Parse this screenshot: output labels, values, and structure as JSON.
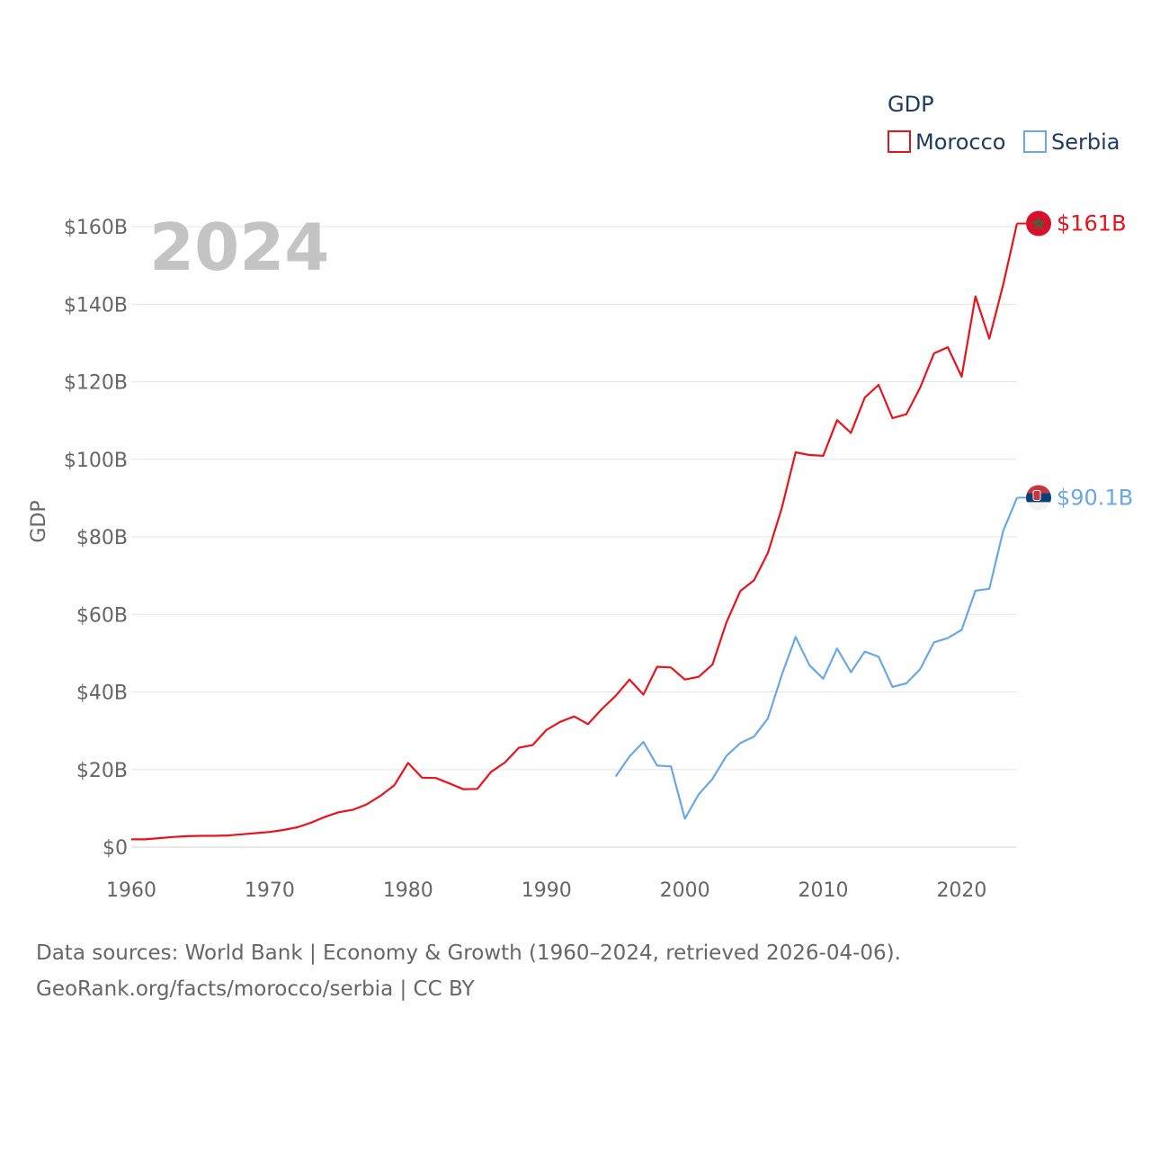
{
  "chart_data": {
    "type": "line",
    "watermark_year": "2024",
    "ylabel": "GDP",
    "xlabel": "",
    "xlim": [
      1960,
      2024
    ],
    "ylim": [
      0,
      160
    ],
    "x_ticks": [
      1960,
      1970,
      1980,
      1990,
      2000,
      2010,
      2020
    ],
    "x_tick_labels": [
      "1960",
      "1970",
      "1980",
      "1990",
      "2000",
      "2010",
      "2020"
    ],
    "y_ticks": [
      0,
      20,
      40,
      60,
      80,
      100,
      120,
      140,
      160
    ],
    "y_tick_labels": [
      "$0",
      "$20B",
      "$40B",
      "$60B",
      "$80B",
      "$100B",
      "$120B",
      "$140B",
      "$160B"
    ],
    "grid": true,
    "legend": {
      "title": "GDP",
      "position": "top-right"
    },
    "series": [
      {
        "name": "Morocco",
        "color": "#e8131b",
        "end_label": "$161B",
        "flag": "morocco-flag",
        "points": [
          [
            1960,
            2.0
          ],
          [
            1961,
            2.0
          ],
          [
            1962,
            2.3
          ],
          [
            1963,
            2.6
          ],
          [
            1964,
            2.8
          ],
          [
            1965,
            2.9
          ],
          [
            1966,
            2.9
          ],
          [
            1967,
            3.0
          ],
          [
            1968,
            3.3
          ],
          [
            1969,
            3.6
          ],
          [
            1970,
            3.9
          ],
          [
            1971,
            4.4
          ],
          [
            1972,
            5.1
          ],
          [
            1973,
            6.3
          ],
          [
            1974,
            7.8
          ],
          [
            1975,
            9.0
          ],
          [
            1976,
            9.6
          ],
          [
            1977,
            11.0
          ],
          [
            1978,
            13.2
          ],
          [
            1979,
            15.9
          ],
          [
            1980,
            21.7
          ],
          [
            1981,
            17.9
          ],
          [
            1982,
            17.8
          ],
          [
            1983,
            16.4
          ],
          [
            1984,
            14.9
          ],
          [
            1985,
            15.0
          ],
          [
            1986,
            19.4
          ],
          [
            1987,
            21.8
          ],
          [
            1988,
            25.6
          ],
          [
            1989,
            26.3
          ],
          [
            1990,
            30.2
          ],
          [
            1991,
            32.3
          ],
          [
            1992,
            33.7
          ],
          [
            1993,
            31.7
          ],
          [
            1994,
            35.6
          ],
          [
            1995,
            39.0
          ],
          [
            1996,
            43.2
          ],
          [
            1997,
            39.3
          ],
          [
            1998,
            46.5
          ],
          [
            1999,
            46.3
          ],
          [
            2000,
            43.2
          ],
          [
            2001,
            43.9
          ],
          [
            2002,
            47.1
          ],
          [
            2003,
            57.9
          ],
          [
            2004,
            66.0
          ],
          [
            2005,
            68.8
          ],
          [
            2006,
            75.9
          ],
          [
            2007,
            87.4
          ],
          [
            2008,
            101.8
          ],
          [
            2009,
            101.1
          ],
          [
            2010,
            100.9
          ],
          [
            2011,
            110.1
          ],
          [
            2012,
            106.8
          ],
          [
            2013,
            115.9
          ],
          [
            2014,
            119.2
          ],
          [
            2015,
            110.6
          ],
          [
            2016,
            111.6
          ],
          [
            2017,
            118.5
          ],
          [
            2018,
            127.3
          ],
          [
            2019,
            128.9
          ],
          [
            2020,
            121.3
          ],
          [
            2021,
            142.0
          ],
          [
            2022,
            131.1
          ],
          [
            2023,
            145.0
          ],
          [
            2024,
            160.8
          ]
        ]
      },
      {
        "name": "Serbia",
        "color": "#6aa8e2",
        "end_label": "$90.1B",
        "flag": "serbia-flag",
        "points": [
          [
            1995,
            18.2
          ],
          [
            1996,
            23.4
          ],
          [
            1997,
            27.1
          ],
          [
            1998,
            21.0
          ],
          [
            1999,
            20.8
          ],
          [
            2000,
            7.3
          ],
          [
            2001,
            13.6
          ],
          [
            2002,
            17.6
          ],
          [
            2003,
            23.5
          ],
          [
            2004,
            26.8
          ],
          [
            2005,
            28.5
          ],
          [
            2006,
            33.2
          ],
          [
            2007,
            44.4
          ],
          [
            2008,
            54.2
          ],
          [
            2009,
            46.9
          ],
          [
            2010,
            43.4
          ],
          [
            2011,
            51.2
          ],
          [
            2012,
            45.1
          ],
          [
            2013,
            50.4
          ],
          [
            2014,
            49.1
          ],
          [
            2015,
            41.3
          ],
          [
            2016,
            42.2
          ],
          [
            2017,
            45.9
          ],
          [
            2018,
            52.8
          ],
          [
            2019,
            53.9
          ],
          [
            2020,
            56.0
          ],
          [
            2021,
            66.1
          ],
          [
            2022,
            66.6
          ],
          [
            2023,
            81.5
          ],
          [
            2024,
            90.1
          ]
        ]
      }
    ]
  },
  "source": {
    "line1": "Data sources: World Bank | Economy & Growth (1960–2024, retrieved 2026-04-06).",
    "line2": "GeoRank.org/facts/morocco/serbia | CC BY"
  }
}
